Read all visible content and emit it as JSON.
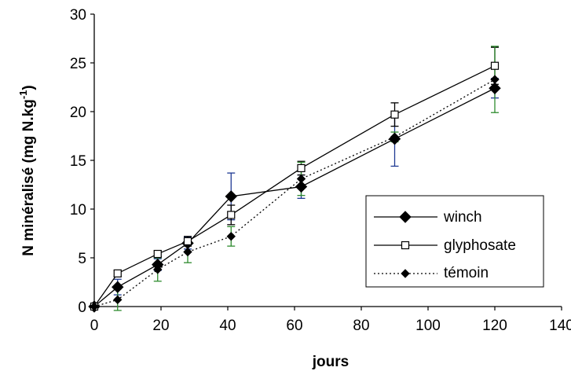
{
  "chart_data": {
    "type": "line",
    "xlabel": "jours",
    "ylabel_main": "N minéralisé (mg N.kg",
    "ylabel_sup": "-1",
    "ylabel_close": ")",
    "xlim": [
      0,
      140
    ],
    "ylim": [
      0,
      30
    ],
    "xticks": [
      0,
      20,
      40,
      60,
      80,
      100,
      120,
      140
    ],
    "yticks": [
      0,
      5,
      10,
      15,
      20,
      25,
      30
    ],
    "grid": false,
    "legend_position": "lower-right",
    "series": [
      {
        "name": "winch",
        "marker": "filled-diamond",
        "line": "solid",
        "x": [
          0,
          7,
          19,
          28,
          41,
          62,
          90,
          120
        ],
        "y": [
          0,
          2.0,
          4.3,
          6.5,
          11.3,
          12.3,
          17.2,
          22.4
        ],
        "err": [
          0,
          0.8,
          0.6,
          0.6,
          2.4,
          1.2,
          2.8,
          1.0
        ],
        "err_color": "#1f3a93"
      },
      {
        "name": "glyphosate",
        "marker": "open-square",
        "line": "solid",
        "x": [
          0,
          7,
          19,
          28,
          41,
          62,
          90,
          120
        ],
        "y": [
          0,
          3.4,
          5.4,
          6.7,
          9.4,
          14.2,
          19.7,
          24.7
        ],
        "err": [
          0,
          0.3,
          0.3,
          0.5,
          1.0,
          0.7,
          1.2,
          1.9
        ],
        "err_color": "#000000"
      },
      {
        "name": "témoin",
        "marker": "small-filled-diamond",
        "line": "dotted",
        "x": [
          0,
          7,
          19,
          28,
          41,
          62,
          90,
          120
        ],
        "y": [
          0,
          0.7,
          3.8,
          5.6,
          7.2,
          13.1,
          17.4,
          23.3
        ],
        "err": [
          0,
          1.1,
          1.2,
          1.1,
          1.0,
          1.7,
          0.5,
          3.4
        ],
        "err_color": "#2e8b2e"
      }
    ]
  }
}
